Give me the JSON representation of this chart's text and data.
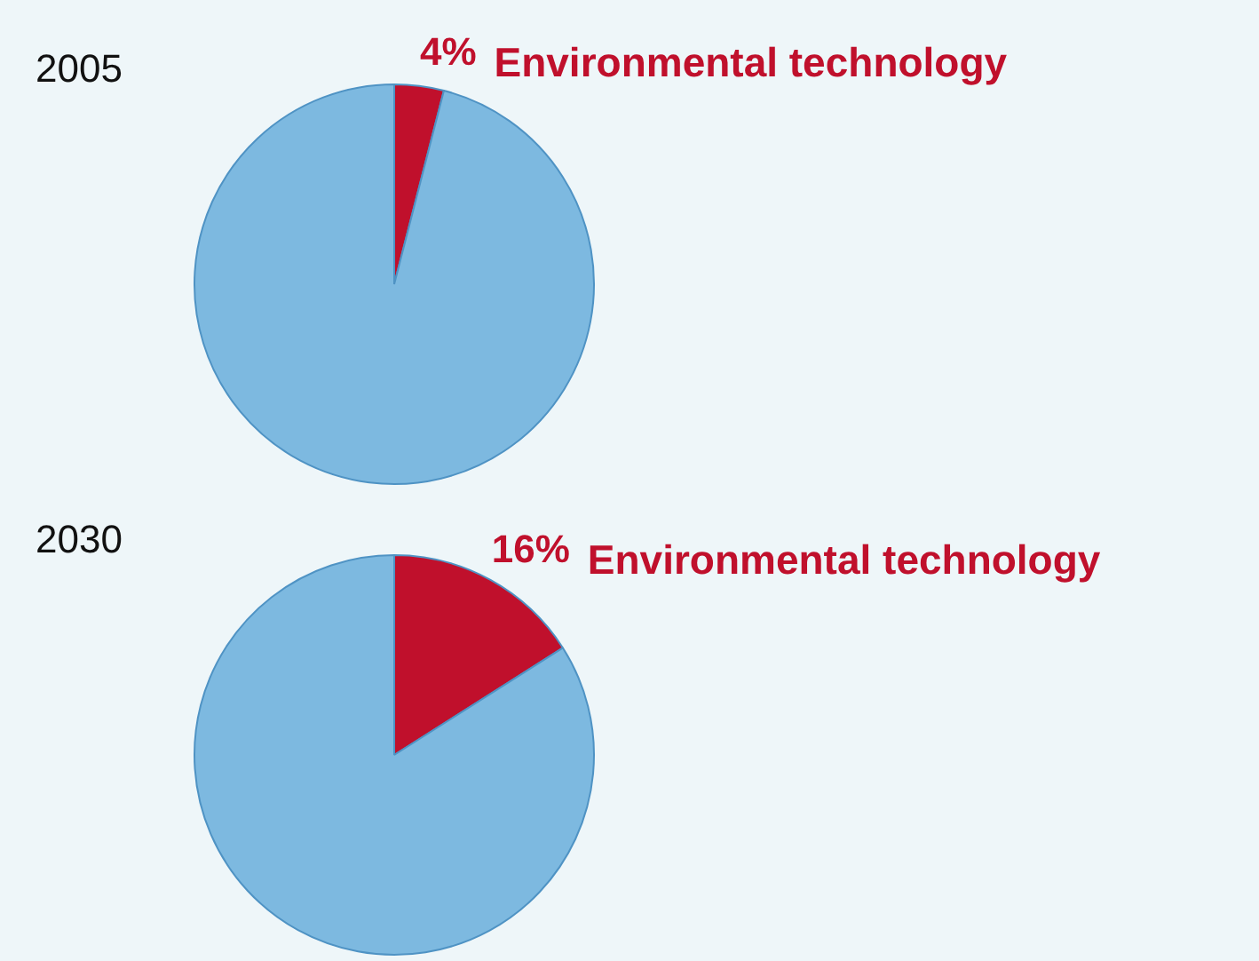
{
  "chart_data": [
    {
      "type": "pie",
      "title": "2005",
      "categories": [
        "Environmental technology",
        null
      ],
      "values": [
        4,
        96
      ],
      "colors": [
        "#c0102c",
        "#7db9e0"
      ],
      "value_labels": [
        "4%",
        null
      ],
      "legend": false
    },
    {
      "type": "pie",
      "title": "2030",
      "categories": [
        "Environmental technology",
        null
      ],
      "values": [
        16,
        84
      ],
      "colors": [
        "#c0102c",
        "#7db9e0"
      ],
      "value_labels": [
        "16%",
        null
      ],
      "legend": false
    }
  ]
}
